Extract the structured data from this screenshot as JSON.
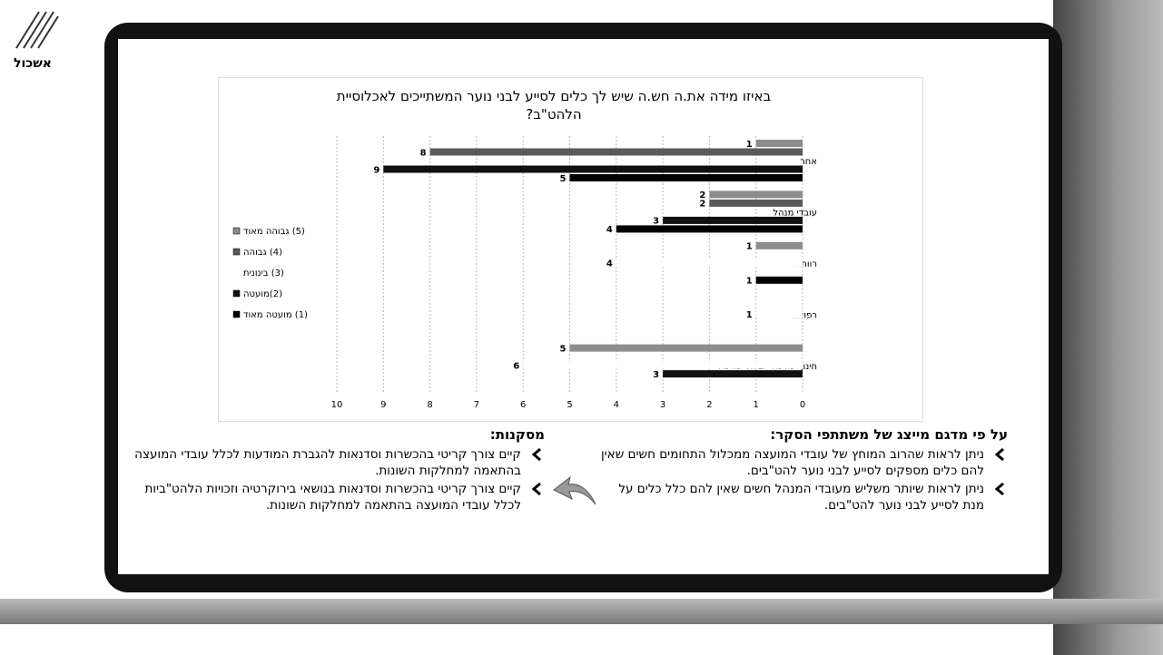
{
  "logo": "אשכול",
  "chart_data": {
    "type": "bar",
    "orientation": "horizontal",
    "title": "באיזו מידה את.ה חש.ה שיש לך כלים לסייע לבני נוער המשתייכים לאכלוסיית הלהט\"ב?",
    "categories": [
      "אחר",
      "עובדי מנהל",
      "רווחה",
      "רפואה",
      "חינוך פורמלי ובלתי פורמלי"
    ],
    "series": [
      {
        "name": "(5) גבוהה מאוד",
        "color": "#8c8c8c",
        "values": [
          1,
          2,
          1,
          null,
          5
        ]
      },
      {
        "name": "(4) גבוהה",
        "color": "#5a5a5a",
        "values": [
          8,
          2,
          null,
          null,
          null
        ]
      },
      {
        "name": "(3) בינונית",
        "color": "#ffffff",
        "values": [
          null,
          null,
          4,
          1,
          6
        ]
      },
      {
        "name": "(2)מועטה",
        "color": "#111111",
        "values": [
          9,
          3,
          null,
          null,
          3
        ]
      },
      {
        "name": "(1) מועטה מאוד",
        "color": "#000000",
        "values": [
          5,
          4,
          1,
          null,
          null
        ]
      }
    ],
    "xlim": [
      0,
      10
    ],
    "xticks": [
      0,
      1,
      2,
      3,
      4,
      5,
      6,
      7,
      8,
      9,
      10
    ],
    "x_reversed": true,
    "grid": true,
    "legend": "left"
  },
  "findings": {
    "title": "על פי מדגם מייצג של משתתפי הסקר:",
    "items": [
      "ניתן לראות שהרוב המוחץ של עובדי המועצה ממכלול התחומים חשים שאין להם כלים מספקים לסייע לבני נוער להט\"בים.",
      "ניתן לראות שיותר משליש מעובדי המנהל חשים שאין להם כלל כלים על מנת לסייע לבני נוער להט\"בים."
    ]
  },
  "conclusions": {
    "title": "מסקנות:",
    "items": [
      "קיים צורך קריטי בהכשרות וסדנאות להגברת המודעות לכלל עובדי המועצה בהתאמה למחלקות השונות.",
      "קיים צורך קריטי בהכשרות וסדנאות בנושאי בירוקרטיה וזכויות הלהט\"ביות לכלל עובדי המועצה בהתאמה למחלקות השונות."
    ]
  }
}
